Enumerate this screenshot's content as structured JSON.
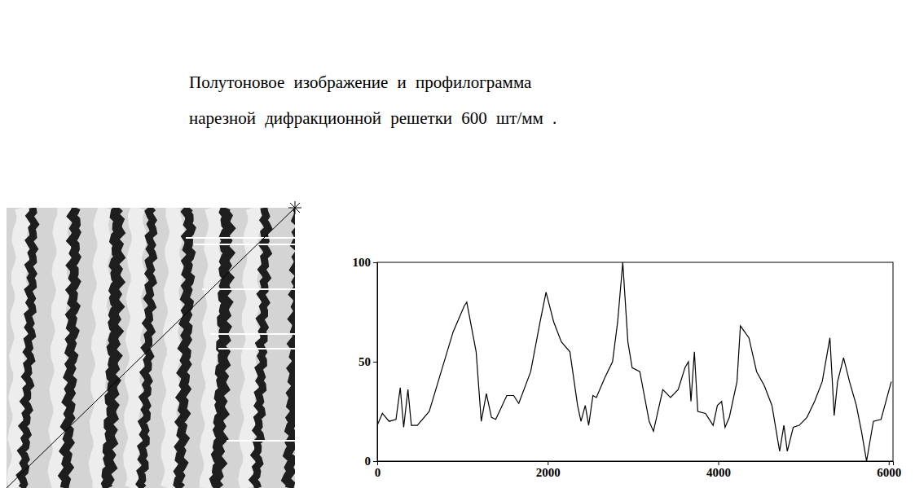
{
  "chart_data": {
    "type": "line",
    "title": [
      "Полутоновое изображение и профилограмма",
      "нарезной дифракционной решетки 600 шт/мм ."
    ],
    "x": [
      0,
      60,
      140,
      220,
      270,
      310,
      360,
      400,
      470,
      610,
      750,
      890,
      1020,
      1050,
      1160,
      1220,
      1280,
      1340,
      1390,
      1520,
      1600,
      1660,
      1800,
      1910,
      1980,
      2070,
      2160,
      2260,
      2350,
      2390,
      2440,
      2480,
      2530,
      2570,
      2670,
      2760,
      2820,
      2880,
      2940,
      2990,
      3080,
      3190,
      3240,
      3350,
      3440,
      3530,
      3610,
      3650,
      3680,
      3720,
      3760,
      3850,
      3940,
      3990,
      4040,
      4080,
      4130,
      4220,
      4260,
      4360,
      4450,
      4540,
      4630,
      4720,
      4770,
      4810,
      4880,
      4950,
      5040,
      5130,
      5220,
      5310,
      5360,
      5400,
      5470,
      5540,
      5620,
      5680,
      5740,
      5820,
      5910,
      6030
    ],
    "values": [
      18,
      24,
      20,
      21,
      37,
      17,
      36,
      18,
      18,
      25,
      45,
      65,
      78,
      80,
      55,
      20,
      34,
      22,
      21,
      33,
      33,
      29,
      45,
      70,
      85,
      70,
      60,
      55,
      28,
      20,
      28,
      18,
      33,
      32,
      42,
      50,
      70,
      100,
      60,
      47,
      45,
      20,
      15,
      36,
      32,
      36,
      47,
      50,
      30,
      55,
      25,
      24,
      18,
      28,
      30,
      17,
      22,
      40,
      68,
      62,
      45,
      38,
      28,
      5,
      18,
      5,
      17,
      18,
      22,
      30,
      40,
      62,
      23,
      40,
      52,
      40,
      28,
      15,
      0,
      20,
      21,
      40
    ],
    "color": "#000000",
    "xlim": [
      0,
      6050
    ],
    "ylim": [
      0,
      100
    ],
    "xticks": [
      0,
      2000,
      4000,
      6000
    ],
    "yticks": [
      0,
      50,
      100
    ],
    "grid": false
  }
}
